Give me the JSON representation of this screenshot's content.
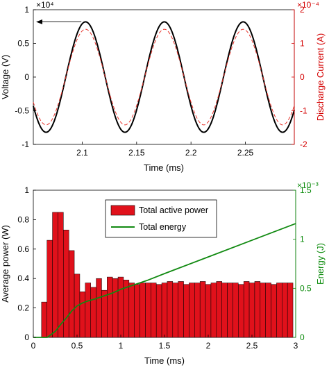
{
  "chart_data": [
    {
      "type": "line",
      "xlabel": "Time (ms)",
      "ylabel": "Voltage (V)",
      "y2label": "Discharge Current (A)",
      "xlim": [
        2.055,
        2.295
      ],
      "ylim": [
        -1,
        1
      ],
      "y2lim": [
        -2,
        2
      ],
      "y_exponent": "×10⁴",
      "y2_exponent": "×10⁻⁴",
      "x_ticks": [
        "2.1",
        "2.15",
        "2.2",
        "2.25"
      ],
      "y_ticks": [
        "-1",
        "-0.5",
        "0",
        "0.5",
        "1"
      ],
      "y2_ticks": [
        "-2",
        "-1",
        "0",
        "1",
        "2"
      ],
      "grid": false,
      "annotation": "arrow pointing from the voltage peak to the left (voltage) axis",
      "series": [
        {
          "axis": "left",
          "color": "#000000",
          "style": "solid",
          "amplitude": 0.82,
          "period_ms": 0.0725,
          "first_peak_ms": 2.103,
          "x": [
            2.055,
            2.067,
            2.085,
            2.103,
            2.121,
            2.139,
            2.158,
            2.176,
            2.194,
            2.212,
            2.23,
            2.248,
            2.266,
            2.284,
            2.295
          ],
          "y": [
            0.0,
            -0.79,
            -0.06,
            0.82,
            0.0,
            -0.82,
            0.0,
            0.82,
            0.0,
            -0.82,
            0.0,
            0.82,
            0.0,
            -0.82,
            -0.48
          ]
        },
        {
          "axis": "right",
          "color": "#e8332b",
          "style": "dashed",
          "amplitude": 1.42,
          "period_ms": 0.0725,
          "first_peak_ms": 2.103,
          "x": [
            2.055,
            2.067,
            2.085,
            2.103,
            2.121,
            2.139,
            2.158,
            2.176,
            2.194,
            2.212,
            2.23,
            2.248,
            2.266,
            2.284,
            2.295
          ],
          "y": [
            0.0,
            -1.37,
            -0.1,
            1.42,
            0.0,
            -1.42,
            0.0,
            1.42,
            0.0,
            -1.42,
            0.0,
            1.42,
            0.0,
            -1.42,
            -0.83
          ]
        }
      ]
    },
    {
      "type": "bar",
      "xlabel": "Time (ms)",
      "ylabel": "Average power (W)",
      "y2label": "Energy (J)",
      "xlim": [
        0,
        3
      ],
      "ylim": [
        0,
        1
      ],
      "y2lim": [
        0,
        1.5
      ],
      "y2_exponent": "×10⁻³",
      "x_ticks": [
        "0",
        "0.5",
        "1",
        "1.5",
        "2",
        "2.5",
        "3"
      ],
      "y_ticks": [
        "0",
        "0.2",
        "0.4",
        "0.6",
        "0.8",
        "1"
      ],
      "y2_ticks": [
        "0",
        "0.5",
        "1",
        "1.5"
      ],
      "grid": false,
      "legend_position": "top-center",
      "bar_width": 0.0625,
      "series": [
        {
          "name": "Total active power",
          "color": "#e0111b",
          "bar_centers": [
            0.125,
            0.1875,
            0.25,
            0.3125,
            0.375,
            0.4375,
            0.5,
            0.5625,
            0.625,
            0.6875,
            0.75,
            0.8125,
            0.875,
            0.9375,
            1.0,
            1.0625,
            1.125,
            1.1875,
            1.25,
            1.3125,
            1.375,
            1.4375,
            1.5,
            1.5625,
            1.625,
            1.6875,
            1.75,
            1.8125,
            1.875,
            1.9375,
            2.0,
            2.0625,
            2.125,
            2.1875,
            2.25,
            2.3125,
            2.375,
            2.4375,
            2.5,
            2.5625,
            2.625,
            2.6875,
            2.75,
            2.8125,
            2.875,
            2.9375
          ],
          "values": [
            0.24,
            0.66,
            0.85,
            0.85,
            0.73,
            0.59,
            0.43,
            0.31,
            0.37,
            0.34,
            0.4,
            0.32,
            0.41,
            0.4,
            0.41,
            0.39,
            0.37,
            0.36,
            0.37,
            0.37,
            0.37,
            0.36,
            0.37,
            0.38,
            0.37,
            0.38,
            0.36,
            0.37,
            0.37,
            0.38,
            0.36,
            0.37,
            0.38,
            0.37,
            0.37,
            0.37,
            0.36,
            0.38,
            0.37,
            0.38,
            0.37,
            0.37,
            0.36,
            0.37,
            0.37,
            0.37
          ]
        },
        {
          "name": "Total energy",
          "type": "line",
          "axis": "right",
          "color": "#118a11",
          "x": [
            0.0,
            0.16,
            0.25,
            0.32,
            0.38,
            0.44,
            0.5,
            0.56,
            0.62,
            0.7,
            0.8,
            0.9,
            1.0,
            1.1,
            1.2,
            1.3,
            1.5,
            2.0,
            2.5,
            3.0
          ],
          "y": [
            0.0,
            0.0,
            0.06,
            0.14,
            0.2,
            0.27,
            0.32,
            0.35,
            0.37,
            0.39,
            0.42,
            0.45,
            0.49,
            0.52,
            0.55,
            0.58,
            0.65,
            0.82,
            0.99,
            1.16
          ]
        }
      ]
    }
  ]
}
